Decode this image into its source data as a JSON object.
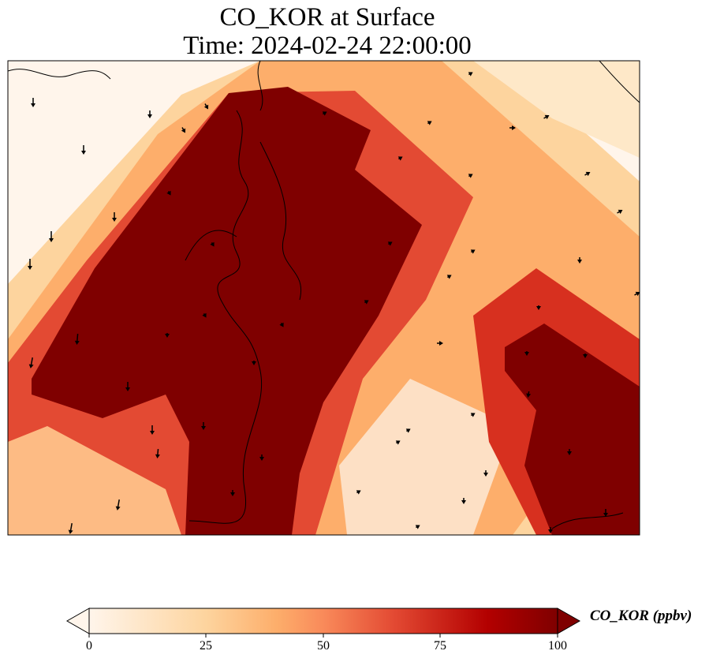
{
  "title": {
    "line1": "CO_KOR at Surface",
    "line2": "Time: 2024-02-24 22:00:00"
  },
  "colorbar": {
    "label": "CO_KOR (ppbv)",
    "ticks": [
      "0",
      "25",
      "50",
      "75",
      "100"
    ],
    "range": [
      0,
      100
    ],
    "extend": "both",
    "colormap": [
      "#fff5eb",
      "#fdd49e",
      "#fdae6b",
      "#f98a5a",
      "#e34a33",
      "#b30000",
      "#7f0000"
    ]
  },
  "chart_data": {
    "type": "heatmap",
    "variable": "CO_KOR",
    "level": "Surface",
    "units": "ppbv",
    "time": "2024-02-24 22:00:00",
    "vmin": 0,
    "vmax": 100
  }
}
